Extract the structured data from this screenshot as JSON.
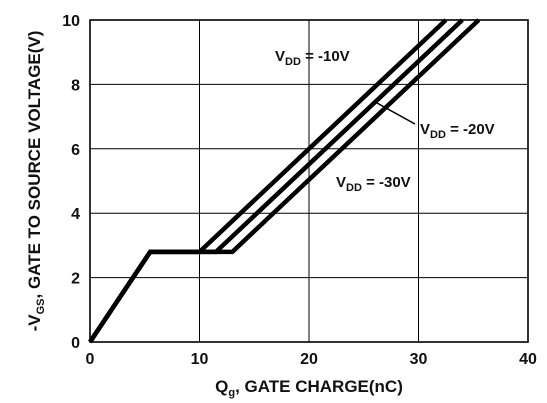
{
  "chart_data": {
    "type": "line",
    "xlabel": "Q",
    "xlabel_sub": "g",
    "xlabel_rest": ", GATE CHARGE(nC)",
    "ylabel": "-V",
    "ylabel_sub": "GS",
    "ylabel_rest": ", GATE TO SOURCE VOLTAGE(V)",
    "xlim": [
      0,
      40
    ],
    "ylim": [
      0,
      10
    ],
    "xticks": [
      0,
      10,
      20,
      30,
      40
    ],
    "yticks": [
      0,
      2,
      4,
      6,
      8,
      10
    ],
    "grid": true,
    "series": [
      {
        "name": "V_DD = -10V",
        "label_main": "V",
        "label_sub": "DD",
        "label_rest": " = -10V",
        "x": [
          0,
          5.5,
          10,
          32.5
        ],
        "y": [
          0,
          2.8,
          2.8,
          10.0
        ]
      },
      {
        "name": "V_DD = -20V",
        "label_main": "V",
        "label_sub": "DD",
        "label_rest": " = -20V",
        "x": [
          0,
          5.5,
          11.5,
          34
        ],
        "y": [
          0,
          2.8,
          2.8,
          10.0
        ]
      },
      {
        "name": "V_DD = -30V",
        "label_main": "V",
        "label_sub": "DD",
        "label_rest": " = -30V",
        "x": [
          0,
          5.5,
          13,
          35.5
        ],
        "y": [
          0,
          2.8,
          2.8,
          10.0
        ]
      }
    ]
  }
}
